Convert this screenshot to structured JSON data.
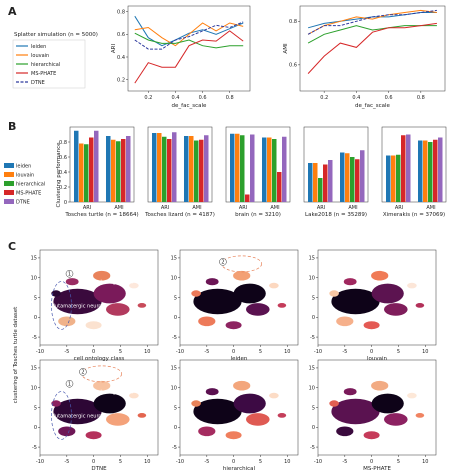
{
  "figure": {
    "panels": {
      "a": "A",
      "b": "B",
      "c": "C"
    }
  },
  "colors": {
    "leiden": "#1f77b4",
    "louvain": "#ff7f0e",
    "hierarchical": "#2ca02c",
    "ms_phate": "#d62728",
    "dtne": "#9467bd",
    "dtne_line": "#2e3a9e"
  },
  "panel_a": {
    "legend_title": "Splatter simulation (n = 5000)",
    "legend": [
      "leiden",
      "louvain",
      "hierarchical",
      "MS-PHATE",
      "DTNE"
    ]
  },
  "panel_b": {
    "legend": [
      "leiden",
      "louvain",
      "hierarchical",
      "MS-PHATE",
      "DTNE"
    ]
  },
  "panel_c": {
    "ylabel": "clustering of Tosches turtle dataset",
    "xticks": [
      "-10",
      "-5",
      "0",
      "5",
      "10"
    ],
    "yticks": [
      "15",
      "10",
      "5",
      "0",
      "-5"
    ],
    "xlabels": [
      "cell ontology class",
      "leiden",
      "louvain",
      "DTNE",
      "hierarchical",
      "MS-PHATE"
    ],
    "annot_top": "ependymoglial cell",
    "annot_bottom": "glutamatergic neuron",
    "circle_1": "1",
    "circle_2": "2"
  },
  "chart_data": [
    {
      "type": "line",
      "title": "",
      "xlabel": "de_fac_scale",
      "ylabel": "ARI",
      "x": [
        0.1,
        0.2,
        0.3,
        0.4,
        0.5,
        0.6,
        0.7,
        0.8,
        0.9
      ],
      "xticks": [
        0.2,
        0.4,
        0.6,
        0.8
      ],
      "yticks": [
        0.2,
        0.4,
        0.6,
        0.8
      ],
      "ylim": [
        0.1,
        0.85
      ],
      "series": [
        {
          "name": "leiden",
          "values": [
            0.76,
            0.57,
            0.5,
            0.55,
            0.61,
            0.64,
            0.6,
            0.65,
            0.7
          ]
        },
        {
          "name": "louvain",
          "values": [
            0.64,
            0.66,
            0.57,
            0.5,
            0.6,
            0.7,
            0.63,
            0.7,
            0.67
          ]
        },
        {
          "name": "hierarchical",
          "values": [
            0.61,
            0.55,
            0.52,
            0.52,
            0.55,
            0.5,
            0.48,
            0.5,
            0.5
          ]
        },
        {
          "name": "MS-PHATE",
          "values": [
            0.17,
            0.35,
            0.31,
            0.31,
            0.5,
            0.55,
            0.54,
            0.63,
            0.54
          ]
        },
        {
          "name": "DTNE",
          "values": [
            0.55,
            0.47,
            0.47,
            0.55,
            0.58,
            0.63,
            0.68,
            0.66,
            0.71
          ]
        }
      ]
    },
    {
      "type": "line",
      "title": "",
      "xlabel": "de_fac_scale",
      "ylabel": "AMI",
      "x": [
        0.1,
        0.2,
        0.3,
        0.4,
        0.5,
        0.6,
        0.7,
        0.8,
        0.9
      ],
      "xticks": [
        0.2,
        0.4,
        0.6,
        0.8
      ],
      "yticks": [
        0.6,
        0.8
      ],
      "ylim": [
        0.48,
        0.87
      ],
      "series": [
        {
          "name": "leiden",
          "values": [
            0.77,
            0.79,
            0.8,
            0.81,
            0.82,
            0.82,
            0.83,
            0.84,
            0.84
          ]
        },
        {
          "name": "louvain",
          "values": [
            0.74,
            0.78,
            0.8,
            0.82,
            0.81,
            0.83,
            0.84,
            0.85,
            0.84
          ]
        },
        {
          "name": "hierarchical",
          "values": [
            0.7,
            0.74,
            0.76,
            0.78,
            0.76,
            0.77,
            0.78,
            0.78,
            0.78
          ]
        },
        {
          "name": "MS-PHATE",
          "values": [
            0.56,
            0.64,
            0.7,
            0.68,
            0.75,
            0.77,
            0.77,
            0.78,
            0.79
          ]
        },
        {
          "name": "DTNE",
          "values": [
            0.74,
            0.78,
            0.78,
            0.8,
            0.82,
            0.83,
            0.83,
            0.84,
            0.85
          ]
        }
      ]
    },
    {
      "type": "bar",
      "ylabel": "Clustering performance",
      "ylim": [
        0,
        1
      ],
      "yticks": [
        0.0,
        0.2,
        0.4,
        0.6,
        0.8
      ],
      "categories": [
        "ARI",
        "AMI"
      ],
      "xlabel": "Tosches turtle (n = 18664)",
      "series": [
        {
          "name": "leiden",
          "values": [
            0.95,
            0.88
          ]
        },
        {
          "name": "louvain",
          "values": [
            0.78,
            0.83
          ]
        },
        {
          "name": "hierarchical",
          "values": [
            0.77,
            0.81
          ]
        },
        {
          "name": "MS-PHATE",
          "values": [
            0.86,
            0.84
          ]
        },
        {
          "name": "DTNE",
          "values": [
            0.95,
            0.88
          ]
        }
      ]
    },
    {
      "type": "bar",
      "categories": [
        "ARI",
        "AMI"
      ],
      "xlabel": "Tosches lizard (n = 4187)",
      "series": [
        {
          "name": "leiden",
          "values": [
            0.92,
            0.88
          ]
        },
        {
          "name": "louvain",
          "values": [
            0.92,
            0.88
          ]
        },
        {
          "name": "hierarchical",
          "values": [
            0.87,
            0.82
          ]
        },
        {
          "name": "MS-PHATE",
          "values": [
            0.84,
            0.83
          ]
        },
        {
          "name": "DTNE",
          "values": [
            0.93,
            0.89
          ]
        }
      ]
    },
    {
      "type": "bar",
      "categories": [
        "ARI",
        "AMI"
      ],
      "xlabel": "brain (n = 3210)",
      "series": [
        {
          "name": "leiden",
          "values": [
            0.91,
            0.86
          ]
        },
        {
          "name": "louvain",
          "values": [
            0.91,
            0.86
          ]
        },
        {
          "name": "hierarchical",
          "values": [
            0.89,
            0.84
          ]
        },
        {
          "name": "MS-PHATE",
          "values": [
            0.1,
            0.4
          ]
        },
        {
          "name": "DTNE",
          "values": [
            0.9,
            0.87
          ]
        }
      ]
    },
    {
      "type": "bar",
      "categories": [
        "ARI",
        "AMI"
      ],
      "xlabel": "Lake2018 (n = 35289)",
      "series": [
        {
          "name": "leiden",
          "values": [
            0.52,
            0.66
          ]
        },
        {
          "name": "louvain",
          "values": [
            0.52,
            0.65
          ]
        },
        {
          "name": "hierarchical",
          "values": [
            0.32,
            0.6
          ]
        },
        {
          "name": "MS-PHATE",
          "values": [
            0.5,
            0.57
          ]
        },
        {
          "name": "DTNE",
          "values": [
            0.56,
            0.69
          ]
        }
      ]
    },
    {
      "type": "bar",
      "categories": [
        "ARI",
        "AMI"
      ],
      "xlabel": "Ximerakis (n = 37069)",
      "series": [
        {
          "name": "leiden",
          "values": [
            0.62,
            0.82
          ]
        },
        {
          "name": "louvain",
          "values": [
            0.62,
            0.82
          ]
        },
        {
          "name": "hierarchical",
          "values": [
            0.63,
            0.8
          ]
        },
        {
          "name": "MS-PHATE",
          "values": [
            0.89,
            0.83
          ]
        },
        {
          "name": "DTNE",
          "values": [
            0.9,
            0.86
          ]
        }
      ]
    }
  ]
}
